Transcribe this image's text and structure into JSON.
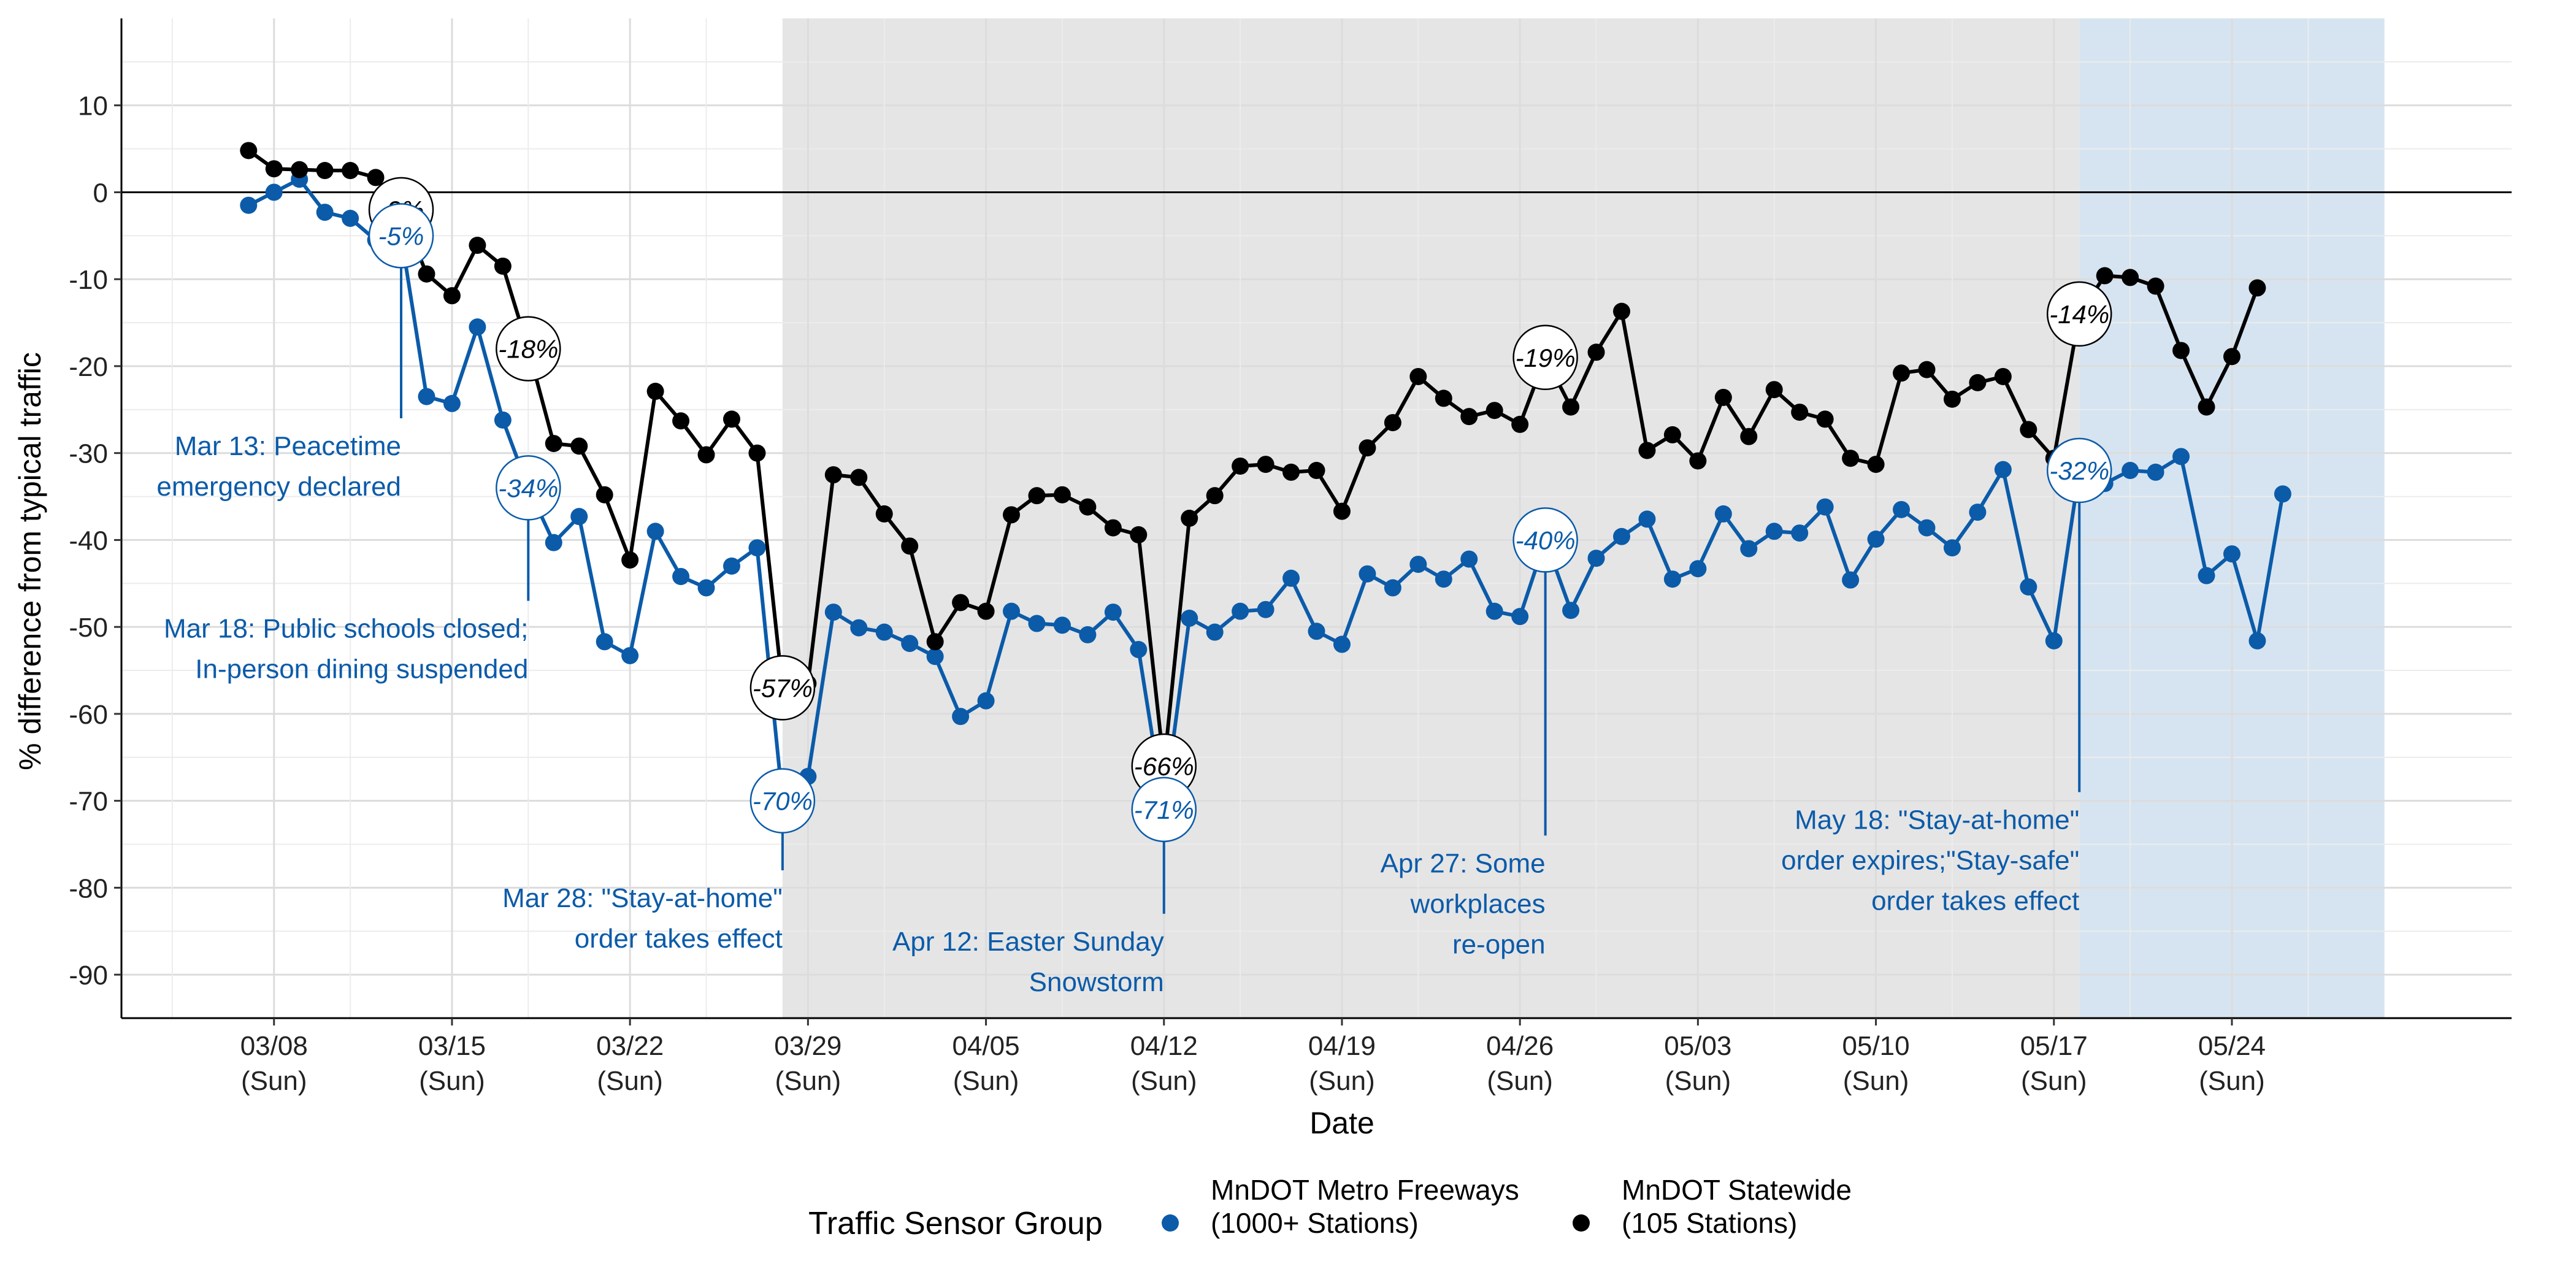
{
  "chart_data": {
    "type": "line",
    "xlabel": "Date",
    "ylabel": "% difference from typical traffic",
    "x_ticks": [
      {
        "date": "2020-03-08",
        "label": "03/08",
        "sub": "(Sun)"
      },
      {
        "date": "2020-03-15",
        "label": "03/15",
        "sub": "(Sun)"
      },
      {
        "date": "2020-03-22",
        "label": "03/22",
        "sub": "(Sun)"
      },
      {
        "date": "2020-03-29",
        "label": "03/29",
        "sub": "(Sun)"
      },
      {
        "date": "2020-04-05",
        "label": "04/05",
        "sub": "(Sun)"
      },
      {
        "date": "2020-04-12",
        "label": "04/12",
        "sub": "(Sun)"
      },
      {
        "date": "2020-04-19",
        "label": "04/19",
        "sub": "(Sun)"
      },
      {
        "date": "2020-04-26",
        "label": "04/26",
        "sub": "(Sun)"
      },
      {
        "date": "2020-05-03",
        "label": "05/03",
        "sub": "(Sun)"
      },
      {
        "date": "2020-05-10",
        "label": "05/10",
        "sub": "(Sun)"
      },
      {
        "date": "2020-05-17",
        "label": "05/17",
        "sub": "(Sun)"
      },
      {
        "date": "2020-05-24",
        "label": "05/24",
        "sub": "(Sun)"
      }
    ],
    "y_ticks": [
      10,
      0,
      -10,
      -20,
      -30,
      -40,
      -50,
      -60,
      -70,
      -80,
      -90
    ],
    "xlim": [
      "2020-03-02",
      "2020-06-04"
    ],
    "ylim": [
      -95,
      20
    ],
    "grid": true,
    "reference_line_y": 0,
    "shaded_periods": [
      {
        "start": "2020-03-28",
        "end": "2020-05-18",
        "color": "#e5e5e5"
      },
      {
        "start": "2020-05-18",
        "end": "2020-05-30",
        "color": "#d6e4f1"
      }
    ],
    "series": [
      {
        "name": "MnDOT Metro Freeways\n(1000+ Stations)",
        "color": "#0b5ba9",
        "values": [
          [
            "2020-03-07",
            -1.5
          ],
          [
            "2020-03-08",
            0
          ],
          [
            "2020-03-09",
            1.5
          ],
          [
            "2020-03-10",
            -2.3
          ],
          [
            "2020-03-11",
            -3.0
          ],
          [
            "2020-03-12",
            -5.5
          ],
          [
            "2020-03-13",
            -5.0
          ],
          [
            "2020-03-14",
            -23.5
          ],
          [
            "2020-03-15",
            -24.3
          ],
          [
            "2020-03-16",
            -15.5
          ],
          [
            "2020-03-17",
            -26.2
          ],
          [
            "2020-03-18",
            -34.0
          ],
          [
            "2020-03-19",
            -40.3
          ],
          [
            "2020-03-20",
            -37.3
          ],
          [
            "2020-03-21",
            -51.7
          ],
          [
            "2020-03-22",
            -53.3
          ],
          [
            "2020-03-23",
            -39.0
          ],
          [
            "2020-03-24",
            -44.2
          ],
          [
            "2020-03-25",
            -45.5
          ],
          [
            "2020-03-26",
            -43.0
          ],
          [
            "2020-03-27",
            -40.9
          ],
          [
            "2020-03-28",
            -70.0
          ],
          [
            "2020-03-29",
            -67.2
          ],
          [
            "2020-03-30",
            -48.3
          ],
          [
            "2020-03-31",
            -50.1
          ],
          [
            "2020-04-01",
            -50.6
          ],
          [
            "2020-04-02",
            -51.9
          ],
          [
            "2020-04-03",
            -53.4
          ],
          [
            "2020-04-04",
            -60.3
          ],
          [
            "2020-04-05",
            -58.5
          ],
          [
            "2020-04-06",
            -48.2
          ],
          [
            "2020-04-07",
            -49.6
          ],
          [
            "2020-04-08",
            -49.8
          ],
          [
            "2020-04-09",
            -50.9
          ],
          [
            "2020-04-10",
            -48.3
          ],
          [
            "2020-04-11",
            -52.6
          ],
          [
            "2020-04-12",
            -71.0
          ],
          [
            "2020-04-13",
            -49.0
          ],
          [
            "2020-04-14",
            -50.6
          ],
          [
            "2020-04-15",
            -48.2
          ],
          [
            "2020-04-16",
            -48.0
          ],
          [
            "2020-04-17",
            -44.4
          ],
          [
            "2020-04-18",
            -50.5
          ],
          [
            "2020-04-19",
            -52.0
          ],
          [
            "2020-04-20",
            -43.9
          ],
          [
            "2020-04-21",
            -45.5
          ],
          [
            "2020-04-22",
            -42.8
          ],
          [
            "2020-04-23",
            -44.5
          ],
          [
            "2020-04-24",
            -42.2
          ],
          [
            "2020-04-25",
            -48.2
          ],
          [
            "2020-04-26",
            -48.8
          ],
          [
            "2020-04-27",
            -40.0
          ],
          [
            "2020-04-28",
            -48.1
          ],
          [
            "2020-04-29",
            -42.1
          ],
          [
            "2020-04-30",
            -39.6
          ],
          [
            "2020-05-01",
            -37.6
          ],
          [
            "2020-05-02",
            -44.5
          ],
          [
            "2020-05-03",
            -43.3
          ],
          [
            "2020-05-04",
            -37.0
          ],
          [
            "2020-05-05",
            -41.0
          ],
          [
            "2020-05-06",
            -39.0
          ],
          [
            "2020-05-07",
            -39.2
          ],
          [
            "2020-05-08",
            -36.2
          ],
          [
            "2020-05-09",
            -44.6
          ],
          [
            "2020-05-10",
            -39.9
          ],
          [
            "2020-05-11",
            -36.5
          ],
          [
            "2020-05-12",
            -38.6
          ],
          [
            "2020-05-13",
            -40.9
          ],
          [
            "2020-05-14",
            -36.8
          ],
          [
            "2020-05-15",
            -31.9
          ],
          [
            "2020-05-16",
            -45.4
          ],
          [
            "2020-05-17",
            -51.6
          ],
          [
            "2020-05-18",
            -32.0
          ],
          [
            "2020-05-19",
            -33.5
          ],
          [
            "2020-05-20",
            -32.0
          ],
          [
            "2020-05-21",
            -32.2
          ],
          [
            "2020-05-22",
            -30.4
          ],
          [
            "2020-05-23",
            -44.1
          ],
          [
            "2020-05-24",
            -41.6
          ],
          [
            "2020-05-25",
            -51.6
          ],
          [
            "2020-05-26",
            -34.7
          ]
        ]
      },
      {
        "name": "MnDOT Statewide\n(105 Stations)",
        "color": "#000000",
        "values": [
          [
            "2020-03-07",
            4.8
          ],
          [
            "2020-03-08",
            2.7
          ],
          [
            "2020-03-09",
            2.6
          ],
          [
            "2020-03-10",
            2.5
          ],
          [
            "2020-03-11",
            2.5
          ],
          [
            "2020-03-12",
            1.7
          ],
          [
            "2020-03-13",
            -2.0
          ],
          [
            "2020-03-14",
            -9.4
          ],
          [
            "2020-03-15",
            -11.9
          ],
          [
            "2020-03-16",
            -6.1
          ],
          [
            "2020-03-17",
            -8.5
          ],
          [
            "2020-03-18",
            -18.0
          ],
          [
            "2020-03-19",
            -28.9
          ],
          [
            "2020-03-20",
            -29.2
          ],
          [
            "2020-03-21",
            -34.8
          ],
          [
            "2020-03-22",
            -42.3
          ],
          [
            "2020-03-23",
            -22.9
          ],
          [
            "2020-03-24",
            -26.3
          ],
          [
            "2020-03-25",
            -30.2
          ],
          [
            "2020-03-26",
            -26.1
          ],
          [
            "2020-03-27",
            -30.0
          ],
          [
            "2020-03-28",
            -57.0
          ],
          [
            "2020-03-29",
            -56.5
          ],
          [
            "2020-03-30",
            -32.5
          ],
          [
            "2020-03-31",
            -32.8
          ],
          [
            "2020-04-01",
            -37.0
          ],
          [
            "2020-04-02",
            -40.7
          ],
          [
            "2020-04-03",
            -51.7
          ],
          [
            "2020-04-04",
            -47.2
          ],
          [
            "2020-04-05",
            -48.2
          ],
          [
            "2020-04-06",
            -37.1
          ],
          [
            "2020-04-07",
            -34.9
          ],
          [
            "2020-04-08",
            -34.8
          ],
          [
            "2020-04-09",
            -36.2
          ],
          [
            "2020-04-10",
            -38.6
          ],
          [
            "2020-04-11",
            -39.4
          ],
          [
            "2020-04-12",
            -66.0
          ],
          [
            "2020-04-13",
            -37.5
          ],
          [
            "2020-04-14",
            -34.9
          ],
          [
            "2020-04-15",
            -31.5
          ],
          [
            "2020-04-16",
            -31.3
          ],
          [
            "2020-04-17",
            -32.2
          ],
          [
            "2020-04-18",
            -32.0
          ],
          [
            "2020-04-19",
            -36.7
          ],
          [
            "2020-04-20",
            -29.4
          ],
          [
            "2020-04-21",
            -26.5
          ],
          [
            "2020-04-22",
            -21.2
          ],
          [
            "2020-04-23",
            -23.7
          ],
          [
            "2020-04-24",
            -25.8
          ],
          [
            "2020-04-25",
            -25.1
          ],
          [
            "2020-04-26",
            -26.7
          ],
          [
            "2020-04-27",
            -19.0
          ],
          [
            "2020-04-28",
            -24.7
          ],
          [
            "2020-04-29",
            -18.4
          ],
          [
            "2020-04-30",
            -13.7
          ],
          [
            "2020-05-01",
            -29.7
          ],
          [
            "2020-05-02",
            -27.9
          ],
          [
            "2020-05-03",
            -30.9
          ],
          [
            "2020-05-04",
            -23.6
          ],
          [
            "2020-05-05",
            -28.1
          ],
          [
            "2020-05-06",
            -22.7
          ],
          [
            "2020-05-07",
            -25.3
          ],
          [
            "2020-05-08",
            -26.1
          ],
          [
            "2020-05-09",
            -30.6
          ],
          [
            "2020-05-10",
            -31.3
          ],
          [
            "2020-05-11",
            -20.8
          ],
          [
            "2020-05-12",
            -20.4
          ],
          [
            "2020-05-13",
            -23.8
          ],
          [
            "2020-05-14",
            -21.9
          ],
          [
            "2020-05-15",
            -21.2
          ],
          [
            "2020-05-16",
            -27.3
          ],
          [
            "2020-05-17",
            -30.6
          ],
          [
            "2020-05-18",
            -14.0
          ],
          [
            "2020-05-19",
            -9.6
          ],
          [
            "2020-05-20",
            -9.8
          ],
          [
            "2020-05-21",
            -10.8
          ],
          [
            "2020-05-22",
            -18.2
          ],
          [
            "2020-05-23",
            -24.7
          ],
          [
            "2020-05-24",
            -18.9
          ],
          [
            "2020-05-25",
            -11.0
          ]
        ]
      }
    ],
    "value_labels": [
      {
        "series": 1,
        "date": "2020-03-13",
        "value": -2.0,
        "text": "-2%"
      },
      {
        "series": 0,
        "date": "2020-03-13",
        "value": -5.0,
        "text": "-5%"
      },
      {
        "series": 1,
        "date": "2020-03-18",
        "value": -18.0,
        "text": "-18%"
      },
      {
        "series": 0,
        "date": "2020-03-18",
        "value": -34.0,
        "text": "-34%"
      },
      {
        "series": 1,
        "date": "2020-03-28",
        "value": -57.0,
        "text": "-57%"
      },
      {
        "series": 0,
        "date": "2020-03-28",
        "value": -70.0,
        "text": "-70%"
      },
      {
        "series": 1,
        "date": "2020-04-12",
        "value": -66.0,
        "text": "-66%"
      },
      {
        "series": 0,
        "date": "2020-04-12",
        "value": -71.0,
        "text": "-71%"
      },
      {
        "series": 1,
        "date": "2020-04-27",
        "value": -19.0,
        "text": "-19%"
      },
      {
        "series": 0,
        "date": "2020-04-27",
        "value": -40.0,
        "text": "-40%"
      },
      {
        "series": 1,
        "date": "2020-05-18",
        "value": -14.0,
        "text": "-14%"
      },
      {
        "series": 0,
        "date": "2020-05-18",
        "value": -32.0,
        "text": "-32%"
      }
    ],
    "annotations": [
      {
        "date": "2020-03-13",
        "from_value": -5.0,
        "to_value": -26.0,
        "lines": [
          "Mar 13: Peacetime",
          "emergency declared"
        ]
      },
      {
        "date": "2020-03-18",
        "from_value": -34.0,
        "to_value": -47.0,
        "lines": [
          "Mar 18: Public schools closed;",
          "In-person dining suspended"
        ]
      },
      {
        "date": "2020-03-28",
        "from_value": -70.0,
        "to_value": -78.0,
        "lines": [
          "Mar 28: \"Stay-at-home\"",
          "order takes effect"
        ]
      },
      {
        "date": "2020-04-12",
        "from_value": -71.0,
        "to_value": -83.0,
        "lines": [
          "Apr 12: Easter Sunday",
          "Snowstorm"
        ]
      },
      {
        "date": "2020-04-27",
        "from_value": -40.0,
        "to_value": -74.0,
        "lines": [
          "Apr 27: Some",
          "workplaces",
          "re-open"
        ]
      },
      {
        "date": "2020-05-18",
        "from_value": -32.0,
        "to_value": -69.0,
        "lines": [
          "May 18: \"Stay-at-home\"",
          "order expires;\"Stay-safe\"",
          "order takes effect"
        ]
      }
    ],
    "legend": {
      "title": "Traffic Sensor Group",
      "position": "bottom",
      "entries": [
        {
          "series": 0,
          "lines": [
            "MnDOT Metro Freeways",
            "(1000+ Stations)"
          ]
        },
        {
          "series": 1,
          "lines": [
            "MnDOT Statewide",
            "(105 Stations)"
          ]
        }
      ]
    }
  }
}
